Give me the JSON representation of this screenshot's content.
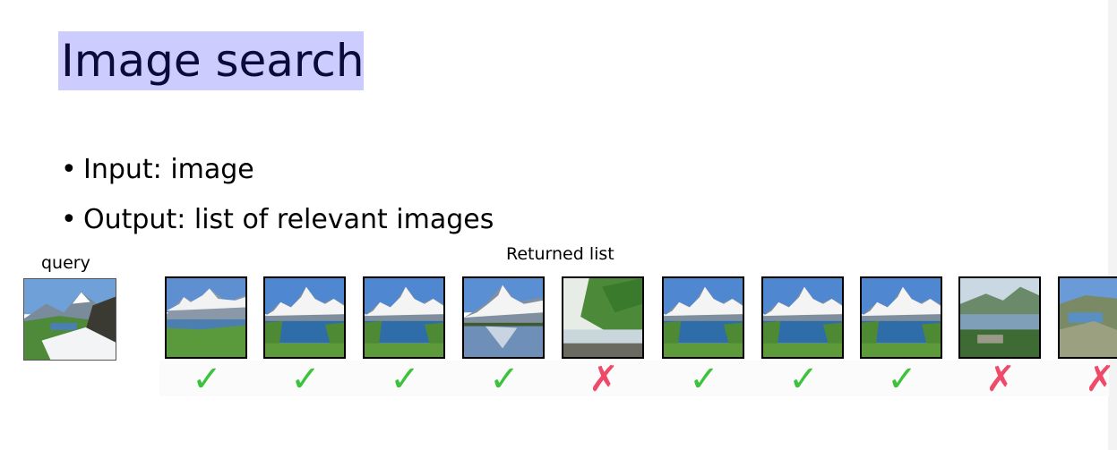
{
  "slide": {
    "title": "Image search",
    "bullets": [
      {
        "text": "Input: image"
      },
      {
        "text": "Output: list of relevant images"
      }
    ],
    "query_label": "query",
    "returned_label": "Returned list",
    "results": [
      {
        "relevant": true,
        "mark": "✓",
        "scene": "mountain-lake-meadow-icon"
      },
      {
        "relevant": true,
        "mark": "✓",
        "scene": "mountain-lake-icon"
      },
      {
        "relevant": true,
        "mark": "✓",
        "scene": "mountain-lake-icon"
      },
      {
        "relevant": true,
        "mark": "✓",
        "scene": "mountain-lake-reflection-icon"
      },
      {
        "relevant": false,
        "mark": "✗",
        "scene": "green-hillside-lake-icon"
      },
      {
        "relevant": true,
        "mark": "✓",
        "scene": "mountain-lake-icon"
      },
      {
        "relevant": true,
        "mark": "✓",
        "scene": "mountain-lake-icon"
      },
      {
        "relevant": true,
        "mark": "✓",
        "scene": "mountain-lake-icon"
      },
      {
        "relevant": false,
        "mark": "✗",
        "scene": "valley-lake-village-icon"
      },
      {
        "relevant": false,
        "mark": "✗",
        "scene": "rocky-slope-icon"
      }
    ],
    "colors": {
      "title_bg": "#ccccff",
      "title_text": "#0b0b3a",
      "check": "#3cc33c",
      "cross": "#ef4a6a"
    }
  }
}
